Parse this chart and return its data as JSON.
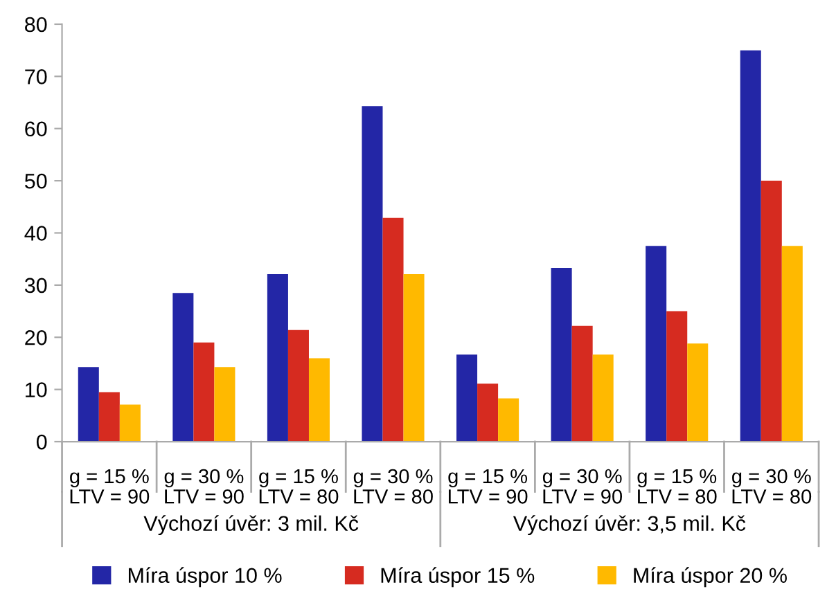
{
  "chart_data": {
    "type": "bar",
    "categories": [
      "g = 15 %\nLTV = 90",
      "g = 30 %\nLTV = 90",
      "g = 15 %\nLTV = 80",
      "g = 30 %\nLTV = 80",
      "g = 15 %\nLTV = 90",
      "g = 30 %\nLTV = 90",
      "g = 15 %\nLTV = 80",
      "g = 30 %\nLTV = 80"
    ],
    "series": [
      {
        "name": "Míra úspor 10 %",
        "color": "#2326a6",
        "values": [
          14.3,
          28.5,
          32.1,
          64.3,
          16.7,
          33.3,
          37.5,
          75
        ]
      },
      {
        "name": "Míra úspor 15 %",
        "color": "#d62b20",
        "values": [
          9.5,
          19,
          21.4,
          42.9,
          11.1,
          22.2,
          25,
          50
        ]
      },
      {
        "name": "Míra úspor 20 %",
        "color": "#ffb900",
        "values": [
          7.1,
          14.3,
          16,
          32.1,
          8.3,
          16.7,
          18.8,
          37.5
        ]
      }
    ],
    "annotations": [
      "Výchozí úvěr: 3 mil. Kč",
      "Výchozí úvěr: 3,5 mil. Kč"
    ],
    "ylim": [
      0,
      80
    ],
    "yticks": [
      0,
      10,
      20,
      30,
      40,
      50,
      60,
      70,
      80
    ],
    "grid": false,
    "legend": "bottom"
  }
}
